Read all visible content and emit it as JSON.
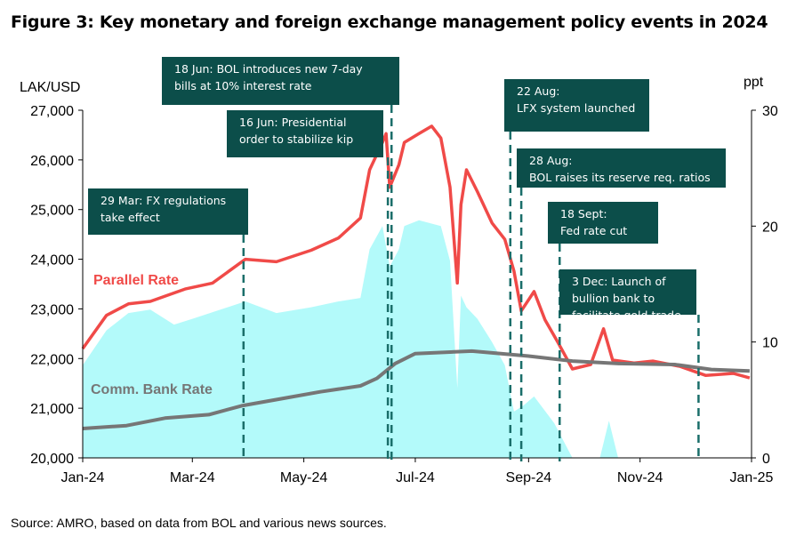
{
  "title": "Figure 3: Key monetary and foreign exchange management policy events in 2024",
  "source": "Source: AMRO, based on data from BOL and various news sources.",
  "chart_data": {
    "type": "line",
    "title": "Figure 3: Key monetary and foreign exchange management policy events in 2024",
    "y_left_label": "LAK/USD",
    "y_right_label": "ppt",
    "x_range": [
      "2024-01-01",
      "2025-01-01"
    ],
    "ylim_left": [
      20000,
      27000
    ],
    "ylim_right": [
      0,
      30
    ],
    "x_ticks": [
      {
        "date": "2024-01-01",
        "label": "Jan-24"
      },
      {
        "date": "2024-03-01",
        "label": "Mar-24"
      },
      {
        "date": "2024-05-01",
        "label": "May-24"
      },
      {
        "date": "2024-07-01",
        "label": "Jul-24"
      },
      {
        "date": "2024-09-01",
        "label": "Sep-24"
      },
      {
        "date": "2024-11-01",
        "label": "Nov-24"
      },
      {
        "date": "2025-01-01",
        "label": "Jan-25"
      }
    ],
    "y_left_ticks": [
      "20,000",
      "21,000",
      "22,000",
      "23,000",
      "24,000",
      "25,000",
      "26,000",
      "27,000"
    ],
    "y_right_ticks": [
      "0",
      "10",
      "20",
      "30"
    ],
    "grid": false,
    "colors": {
      "parallel": "#f04a48",
      "comm": "#767676",
      "spread": "#b3fafa",
      "annotation_box": "#0c4e4a",
      "event_line": "#1a6e6a"
    },
    "series": [
      {
        "name": "Parallel Rate",
        "axis": "left",
        "kind": "line",
        "points": [
          [
            "2024-01-01",
            22200
          ],
          [
            "2024-01-14",
            22870
          ],
          [
            "2024-01-26",
            23100
          ],
          [
            "2024-02-07",
            23150
          ],
          [
            "2024-02-26",
            23400
          ],
          [
            "2024-03-12",
            23520
          ],
          [
            "2024-03-30",
            24000
          ],
          [
            "2024-04-16",
            23950
          ],
          [
            "2024-05-05",
            24180
          ],
          [
            "2024-05-20",
            24430
          ],
          [
            "2024-06-01",
            24830
          ],
          [
            "2024-06-06",
            25800
          ],
          [
            "2024-06-13",
            26350
          ],
          [
            "2024-06-15",
            26530
          ],
          [
            "2024-06-17",
            25450
          ],
          [
            "2024-06-22",
            25900
          ],
          [
            "2024-06-25",
            26350
          ],
          [
            "2024-07-03",
            26530
          ],
          [
            "2024-07-10",
            26680
          ],
          [
            "2024-07-15",
            26440
          ],
          [
            "2024-07-20",
            25450
          ],
          [
            "2024-07-24",
            23520
          ],
          [
            "2024-07-26",
            25100
          ],
          [
            "2024-07-29",
            25800
          ],
          [
            "2024-08-04",
            25360
          ],
          [
            "2024-08-12",
            24730
          ],
          [
            "2024-08-19",
            24400
          ],
          [
            "2024-08-24",
            23760
          ],
          [
            "2024-08-28",
            22960
          ],
          [
            "2024-09-04",
            23350
          ],
          [
            "2024-09-10",
            22780
          ],
          [
            "2024-09-17",
            22330
          ],
          [
            "2024-09-25",
            21790
          ],
          [
            "2024-10-05",
            21880
          ],
          [
            "2024-10-12",
            22600
          ],
          [
            "2024-10-17",
            21970
          ],
          [
            "2024-10-29",
            21910
          ],
          [
            "2024-11-08",
            21950
          ],
          [
            "2024-11-23",
            21840
          ],
          [
            "2024-12-07",
            21660
          ],
          [
            "2024-12-22",
            21700
          ],
          [
            "2024-12-31",
            21610
          ]
        ]
      },
      {
        "name": "Comm. Bank Rate",
        "axis": "left",
        "kind": "line",
        "points": [
          [
            "2024-01-01",
            20590
          ],
          [
            "2024-01-25",
            20650
          ],
          [
            "2024-02-15",
            20800
          ],
          [
            "2024-03-10",
            20870
          ],
          [
            "2024-03-28",
            21050
          ],
          [
            "2024-04-20",
            21200
          ],
          [
            "2024-05-10",
            21330
          ],
          [
            "2024-06-01",
            21450
          ],
          [
            "2024-06-10",
            21600
          ],
          [
            "2024-06-20",
            21900
          ],
          [
            "2024-07-01",
            22100
          ],
          [
            "2024-08-01",
            22150
          ],
          [
            "2024-09-01",
            22050
          ],
          [
            "2024-09-25",
            21950
          ],
          [
            "2024-10-20",
            21900
          ],
          [
            "2024-11-20",
            21880
          ],
          [
            "2024-12-10",
            21780
          ],
          [
            "2024-12-31",
            21750
          ]
        ]
      },
      {
        "axis": "right",
        "kind": "area",
        "points": [
          [
            "2024-01-01",
            8
          ],
          [
            "2024-01-14",
            11
          ],
          [
            "2024-01-26",
            12.5
          ],
          [
            "2024-02-07",
            12.8
          ],
          [
            "2024-02-20",
            11.5
          ],
          [
            "2024-03-01",
            12
          ],
          [
            "2024-03-30",
            13.5
          ],
          [
            "2024-04-16",
            12.5
          ],
          [
            "2024-05-05",
            13
          ],
          [
            "2024-05-20",
            13.5
          ],
          [
            "2024-06-01",
            13.8
          ],
          [
            "2024-06-06",
            18
          ],
          [
            "2024-06-13",
            20
          ],
          [
            "2024-06-17",
            16.5
          ],
          [
            "2024-06-22",
            18
          ],
          [
            "2024-06-25",
            20
          ],
          [
            "2024-07-03",
            20.5
          ],
          [
            "2024-07-15",
            20
          ],
          [
            "2024-07-20",
            17
          ],
          [
            "2024-07-24",
            6
          ],
          [
            "2024-07-26",
            14
          ],
          [
            "2024-07-29",
            13
          ],
          [
            "2024-08-04",
            12
          ],
          [
            "2024-08-12",
            10
          ],
          [
            "2024-08-19",
            8
          ],
          [
            "2024-08-24",
            4
          ],
          [
            "2024-08-29",
            4.5
          ],
          [
            "2024-09-04",
            5.3
          ],
          [
            "2024-09-15",
            3
          ],
          [
            "2024-09-25",
            0
          ],
          [
            "2024-10-10",
            0
          ],
          [
            "2024-10-15",
            3.2
          ],
          [
            "2024-10-20",
            0
          ],
          [
            "2024-12-31",
            0
          ]
        ]
      }
    ],
    "series_labels": {
      "parallel": "Parallel Rate",
      "comm": "Comm. Bank Rate"
    },
    "events": [
      {
        "date": "2024-03-29",
        "text": [
          "29 Mar: FX regulations",
          "take effect"
        ]
      },
      {
        "date": "2024-06-16",
        "text": [
          "16 Jun: Presidential",
          "order to stabilize kip"
        ]
      },
      {
        "date": "2024-06-18",
        "text": [
          "18 Jun: BOL introduces new 7-day",
          "bills at 10% interest rate"
        ]
      },
      {
        "date": "2024-08-22",
        "text": [
          "22 Aug:",
          "LFX system launched"
        ]
      },
      {
        "date": "2024-08-28",
        "text": [
          "28 Aug:",
          "BOL raises its reserve req. ratios"
        ]
      },
      {
        "date": "2024-09-18",
        "text": [
          "18 Sept:",
          "Fed rate cut"
        ]
      },
      {
        "date": "2024-12-03",
        "text": [
          "3 Dec: Launch of",
          "bullion bank to",
          "facilitate gold trade"
        ]
      }
    ]
  }
}
